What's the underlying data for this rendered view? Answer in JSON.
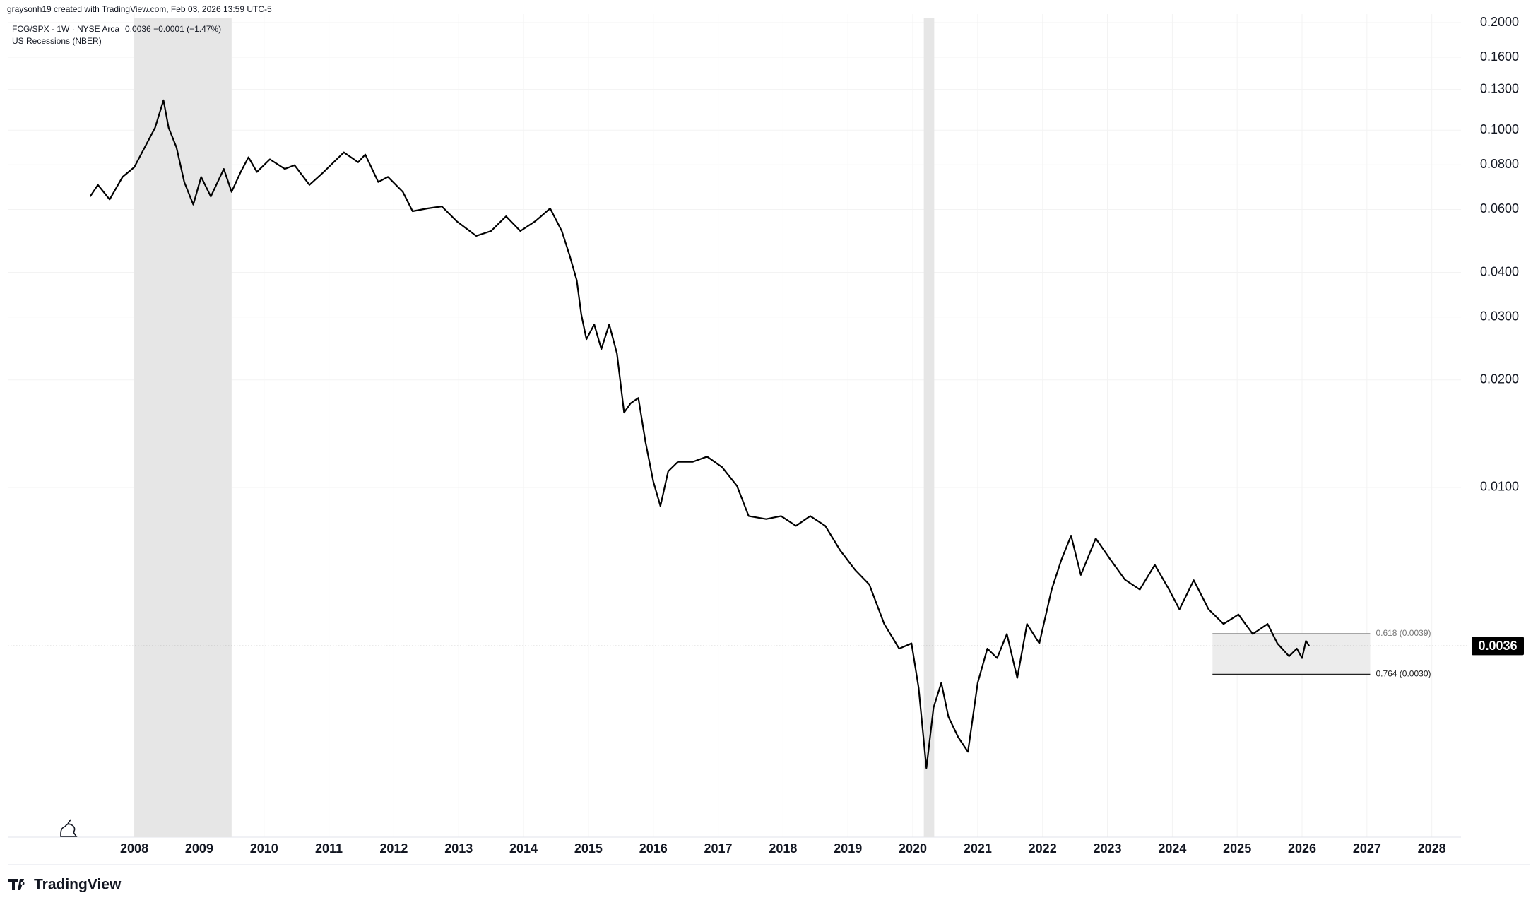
{
  "chart_data": {
    "type": "line",
    "attribution": "graysonh19 created with TradingView.com, Feb 03, 2026 13:59 UTC-5",
    "legend_change": "0.0036  −0.0001 (−1.47%)",
    "recession_label": "US Recessions (NBER)",
    "brand": "TradingView",
    "log_scale": true,
    "grid": true,
    "xlim": [
      2006.05,
      2028.45
    ],
    "xticks": [
      2008,
      2009,
      2010,
      2011,
      2012,
      2013,
      2014,
      2015,
      2016,
      2017,
      2018,
      2019,
      2020,
      2021,
      2022,
      2023,
      2024,
      2025,
      2026,
      2027,
      2028
    ],
    "ylim": [
      0.00105,
      0.2065
    ],
    "yticks": [
      {
        "value": 0.2,
        "label": "0.2000"
      },
      {
        "value": 0.16,
        "label": "0.1600"
      },
      {
        "value": 0.13,
        "label": "0.1300"
      },
      {
        "value": 0.1,
        "label": "0.1000"
      },
      {
        "value": 0.08,
        "label": "0.0800"
      },
      {
        "value": 0.06,
        "label": "0.0600"
      },
      {
        "value": 0.04,
        "label": "0.0400"
      },
      {
        "value": 0.03,
        "label": "0.0300"
      },
      {
        "value": 0.02,
        "label": "0.0200"
      },
      {
        "value": 0.01,
        "label": "0.0100"
      }
    ],
    "recessions": [
      {
        "start": 2008.0,
        "end": 2009.5
      },
      {
        "start": 2020.17,
        "end": 2020.33
      }
    ],
    "recession_color": "#e6e6e6",
    "last_value": 0.0036,
    "fib": {
      "x_start": 2024.62,
      "x_end": 2027.05,
      "fill": "#ececec",
      "levels": [
        {
          "value": 0.0039,
          "label": "0.618 (0.0039)"
        },
        {
          "value": 0.003,
          "label": "0.764 (0.0030)"
        }
      ]
    },
    "x": [
      2007.32,
      2007.44,
      2007.62,
      2007.82,
      2008.0,
      2008.2,
      2008.32,
      2008.45,
      2008.53,
      2008.65,
      2008.77,
      2008.91,
      2009.03,
      2009.18,
      2009.38,
      2009.5,
      2009.64,
      2009.76,
      2009.89,
      2010.09,
      2010.32,
      2010.47,
      2010.7,
      2010.92,
      2011.23,
      2011.45,
      2011.56,
      2011.76,
      2011.91,
      2012.14,
      2012.29,
      2012.52,
      2012.74,
      2012.97,
      2013.27,
      2013.5,
      2013.73,
      2013.95,
      2014.18,
      2014.41,
      2014.59,
      2014.71,
      2014.82,
      2014.89,
      2014.97,
      2015.09,
      2015.2,
      2015.32,
      2015.44,
      2015.55,
      2015.65,
      2015.77,
      2015.88,
      2016.0,
      2016.11,
      2016.23,
      2016.38,
      2016.61,
      2016.83,
      2017.06,
      2017.29,
      2017.47,
      2017.74,
      2017.97,
      2018.2,
      2018.42,
      2018.65,
      2018.88,
      2019.11,
      2019.33,
      2019.56,
      2019.79,
      2019.98,
      2020.09,
      2020.21,
      2020.32,
      2020.44,
      2020.55,
      2020.7,
      2020.85,
      2021.0,
      2021.15,
      2021.3,
      2021.45,
      2021.61,
      2021.76,
      2021.95,
      2022.14,
      2022.29,
      2022.44,
      2022.59,
      2022.82,
      2023.05,
      2023.27,
      2023.5,
      2023.73,
      2023.95,
      2024.11,
      2024.33,
      2024.56,
      2024.79,
      2025.02,
      2025.24,
      2025.47,
      2025.62,
      2025.8,
      2025.92,
      2026.0,
      2026.06,
      2026.11
    ],
    "series": [
      {
        "name": "FCG/SPX · 1W · NYSE Arca",
        "color": "#000000",
        "values": [
          0.0652,
          0.0703,
          0.064,
          0.074,
          0.0788,
          0.0923,
          0.1016,
          0.1213,
          0.1016,
          0.0895,
          0.0716,
          0.0619,
          0.074,
          0.0652,
          0.0779,
          0.0672,
          0.0764,
          0.084,
          0.0764,
          0.0829,
          0.0779,
          0.0798,
          0.0703,
          0.0764,
          0.0867,
          0.0813,
          0.0855,
          0.0716,
          0.074,
          0.0672,
          0.0593,
          0.0604,
          0.0612,
          0.0556,
          0.0506,
          0.0522,
          0.0574,
          0.0522,
          0.0556,
          0.0604,
          0.0522,
          0.0446,
          0.038,
          0.0305,
          0.026,
          0.0286,
          0.0244,
          0.0286,
          0.0237,
          0.0162,
          0.0172,
          0.0178,
          0.0134,
          0.0104,
          0.00887,
          0.0111,
          0.0118,
          0.0118,
          0.0122,
          0.0114,
          0.0101,
          0.00832,
          0.00816,
          0.00832,
          0.00781,
          0.00832,
          0.00781,
          0.00667,
          0.00588,
          0.00535,
          0.00415,
          0.00354,
          0.00366,
          0.00275,
          0.00164,
          0.00242,
          0.00284,
          0.00228,
          0.002,
          0.00182,
          0.00284,
          0.00354,
          0.00333,
          0.00389,
          0.00293,
          0.00415,
          0.00366,
          0.00518,
          0.00627,
          0.00733,
          0.00569,
          0.0072,
          0.00627,
          0.00552,
          0.00518,
          0.00607,
          0.00518,
          0.00456,
          0.0055,
          0.00456,
          0.00415,
          0.00441,
          0.00389,
          0.00415,
          0.00366,
          0.00337,
          0.00354,
          0.00333,
          0.00372,
          0.0036
        ]
      }
    ]
  }
}
